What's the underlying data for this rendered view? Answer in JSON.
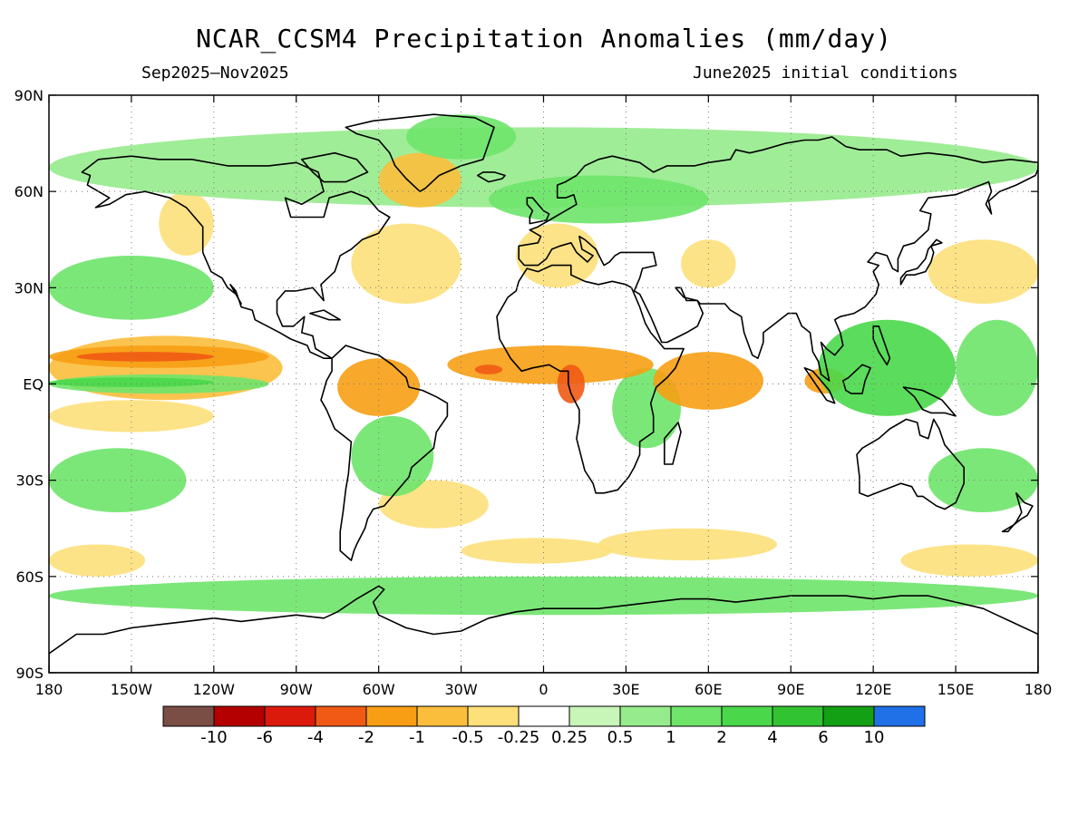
{
  "title": "NCAR_CCSM4 Precipitation Anomalies (mm/day)",
  "subtitle_left": "Sep2025–Nov2025",
  "subtitle_right": "June2025 initial conditions",
  "map": {
    "projection": "equirectangular",
    "lon_range": [
      -180,
      180
    ],
    "lat_range": [
      -90,
      90
    ],
    "grid": true,
    "lon_ticks": [
      {
        "lon": -180,
        "label": "180"
      },
      {
        "lon": -150,
        "label": "150W"
      },
      {
        "lon": -120,
        "label": "120W"
      },
      {
        "lon": -90,
        "label": "90W"
      },
      {
        "lon": -60,
        "label": "60W"
      },
      {
        "lon": -30,
        "label": "30W"
      },
      {
        "lon": 0,
        "label": "0"
      },
      {
        "lon": 30,
        "label": "30E"
      },
      {
        "lon": 60,
        "label": "60E"
      },
      {
        "lon": 90,
        "label": "90E"
      },
      {
        "lon": 120,
        "label": "120E"
      },
      {
        "lon": 150,
        "label": "150E"
      },
      {
        "lon": 180,
        "label": "180"
      }
    ],
    "lat_ticks": [
      {
        "lat": 90,
        "label": "90N"
      },
      {
        "lat": 60,
        "label": "60N"
      },
      {
        "lat": 30,
        "label": "30N"
      },
      {
        "lat": 0,
        "label": "EQ"
      },
      {
        "lat": -30,
        "label": "30S"
      },
      {
        "lat": -60,
        "label": "60S"
      },
      {
        "lat": -90,
        "label": "90S"
      }
    ]
  },
  "colorbar": {
    "colors": [
      "#7a4e44",
      "#b40000",
      "#dc1a0c",
      "#f05a14",
      "#f79e14",
      "#fbbe3c",
      "#fde07a",
      "#ffffff",
      "#c8f5b8",
      "#96eb8c",
      "#6ee46a",
      "#4ad84a",
      "#32c332",
      "#14a014",
      "#2070e8"
    ],
    "labels": [
      "-10",
      "-6",
      "-4",
      "-2",
      "-1",
      "-0.5",
      "-0.25",
      "0.25",
      "0.5",
      "1",
      "2",
      "4",
      "6",
      "10"
    ]
  },
  "anomaly_regions": [
    {
      "level": -2,
      "lon": [
        -180,
        -100
      ],
      "lat": [
        5,
        12
      ]
    },
    {
      "level": -1,
      "lon": [
        -180,
        -95
      ],
      "lat": [
        -5,
        15
      ]
    },
    {
      "level": -4,
      "lon": [
        -170,
        -120
      ],
      "lat": [
        7,
        10
      ]
    },
    {
      "level": -2,
      "lon": [
        -75,
        -45
      ],
      "lat": [
        -10,
        8
      ]
    },
    {
      "level": -2,
      "lon": [
        -35,
        40
      ],
      "lat": [
        0,
        12
      ]
    },
    {
      "level": -4,
      "lon": [
        -25,
        -15
      ],
      "lat": [
        3,
        6
      ]
    },
    {
      "level": -4,
      "lon": [
        5,
        15
      ],
      "lat": [
        -6,
        6
      ]
    },
    {
      "level": -2,
      "lon": [
        40,
        80
      ],
      "lat": [
        -8,
        10
      ]
    },
    {
      "level": -2,
      "lon": [
        95,
        110
      ],
      "lat": [
        -3,
        5
      ]
    },
    {
      "level": -0.5,
      "lon": [
        -180,
        -120
      ],
      "lat": [
        -15,
        -5
      ]
    },
    {
      "level": -0.5,
      "lon": [
        -60,
        -20
      ],
      "lat": [
        -45,
        -30
      ]
    },
    {
      "level": -0.5,
      "lon": [
        -30,
        25
      ],
      "lat": [
        -56,
        -48
      ]
    },
    {
      "level": -0.5,
      "lon": [
        20,
        85
      ],
      "lat": [
        -55,
        -45
      ]
    },
    {
      "level": -0.5,
      "lon": [
        -180,
        -145
      ],
      "lat": [
        -60,
        -50
      ]
    },
    {
      "level": -0.5,
      "lon": [
        130,
        180
      ],
      "lat": [
        -60,
        -50
      ]
    },
    {
      "level": -0.5,
      "lon": [
        -140,
        -120
      ],
      "lat": [
        40,
        60
      ]
    },
    {
      "level": -0.5,
      "lon": [
        -70,
        -30
      ],
      "lat": [
        25,
        50
      ]
    },
    {
      "level": -1,
      "lon": [
        -60,
        -30
      ],
      "lat": [
        55,
        72
      ]
    },
    {
      "level": -0.5,
      "lon": [
        -10,
        20
      ],
      "lat": [
        30,
        50
      ]
    },
    {
      "level": -0.5,
      "lon": [
        50,
        70
      ],
      "lat": [
        30,
        45
      ]
    },
    {
      "level": -0.5,
      "lon": [
        140,
        180
      ],
      "lat": [
        25,
        45
      ]
    },
    {
      "level": 1,
      "lon": [
        -180,
        -100
      ],
      "lat": [
        -3,
        3
      ]
    },
    {
      "level": 2,
      "lon": [
        -180,
        -120
      ],
      "lat": [
        -1,
        2
      ]
    },
    {
      "level": 1,
      "lon": [
        -180,
        -130
      ],
      "lat": [
        -40,
        -20
      ]
    },
    {
      "level": 1,
      "lon": [
        -180,
        -120
      ],
      "lat": [
        20,
        40
      ]
    },
    {
      "level": 1,
      "lon": [
        -70,
        -40
      ],
      "lat": [
        -35,
        -10
      ]
    },
    {
      "level": 1,
      "lon": [
        25,
        50
      ],
      "lat": [
        -20,
        5
      ]
    },
    {
      "level": 2,
      "lon": [
        100,
        150
      ],
      "lat": [
        -10,
        20
      ]
    },
    {
      "level": 1,
      "lon": [
        150,
        180
      ],
      "lat": [
        -10,
        20
      ]
    },
    {
      "level": 1,
      "lon": [
        140,
        180
      ],
      "lat": [
        -40,
        -20
      ]
    },
    {
      "level": 1,
      "lon": [
        -180,
        180
      ],
      "lat": [
        -72,
        -60
      ]
    },
    {
      "level": 0.5,
      "lon": [
        -180,
        180
      ],
      "lat": [
        55,
        80
      ]
    },
    {
      "level": 1,
      "lon": [
        -20,
        60
      ],
      "lat": [
        50,
        65
      ]
    },
    {
      "level": 1,
      "lon": [
        -50,
        -10
      ],
      "lat": [
        70,
        84
      ]
    }
  ]
}
